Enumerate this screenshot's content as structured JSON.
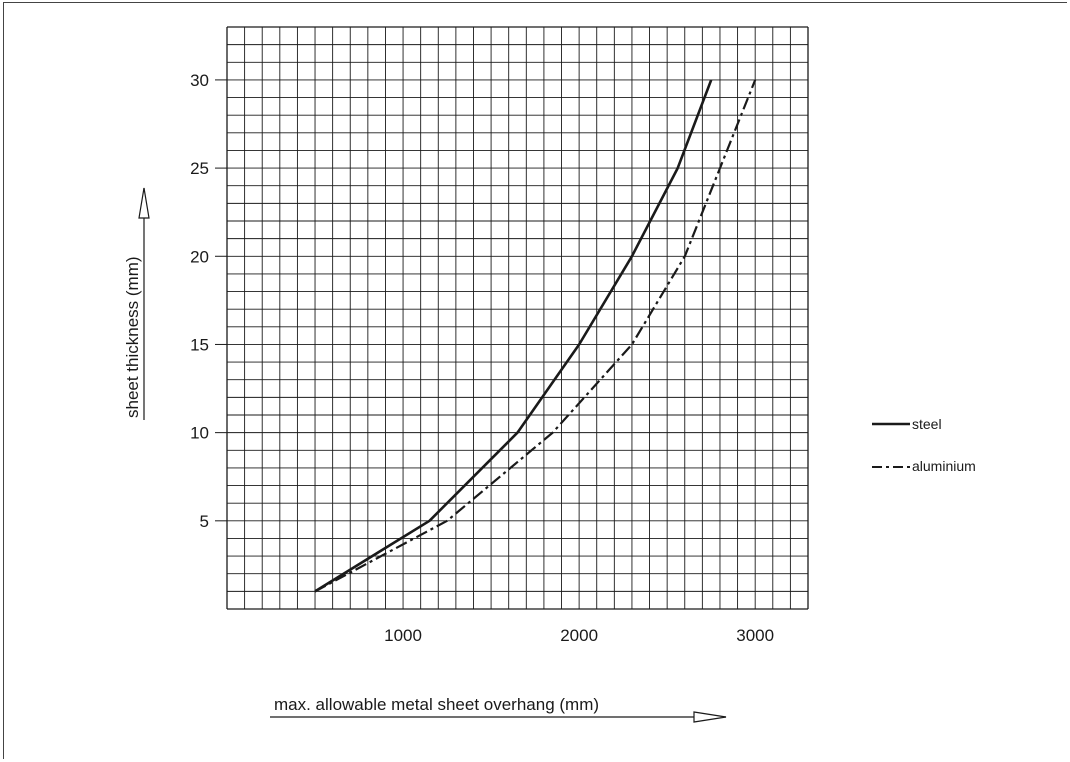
{
  "chart_data": {
    "type": "line",
    "title": "",
    "xlabel": "max. allowable metal sheet overhang (mm)",
    "ylabel": "sheet thickness (mm)",
    "xlim": [
      0,
      3300
    ],
    "ylim": [
      0,
      33
    ],
    "grid": true,
    "legend_position": "right",
    "x_ticks": [
      1000,
      2000,
      3000
    ],
    "y_ticks": [
      5,
      10,
      15,
      20,
      25,
      30
    ],
    "series": [
      {
        "name": "steel",
        "line_style": "solid",
        "color": "#1a1a1a",
        "points": [
          [
            500,
            1
          ],
          [
            1150,
            5
          ],
          [
            1650,
            10
          ],
          [
            2000,
            15
          ],
          [
            2300,
            20
          ],
          [
            2560,
            25
          ],
          [
            2750,
            30
          ]
        ]
      },
      {
        "name": "aluminium",
        "line_style": "dash-dot",
        "color": "#1a1a1a",
        "points": [
          [
            500,
            1
          ],
          [
            1250,
            5
          ],
          [
            1850,
            10
          ],
          [
            2300,
            15
          ],
          [
            2600,
            20
          ],
          [
            2800,
            25
          ],
          [
            3000,
            30
          ]
        ]
      }
    ]
  }
}
